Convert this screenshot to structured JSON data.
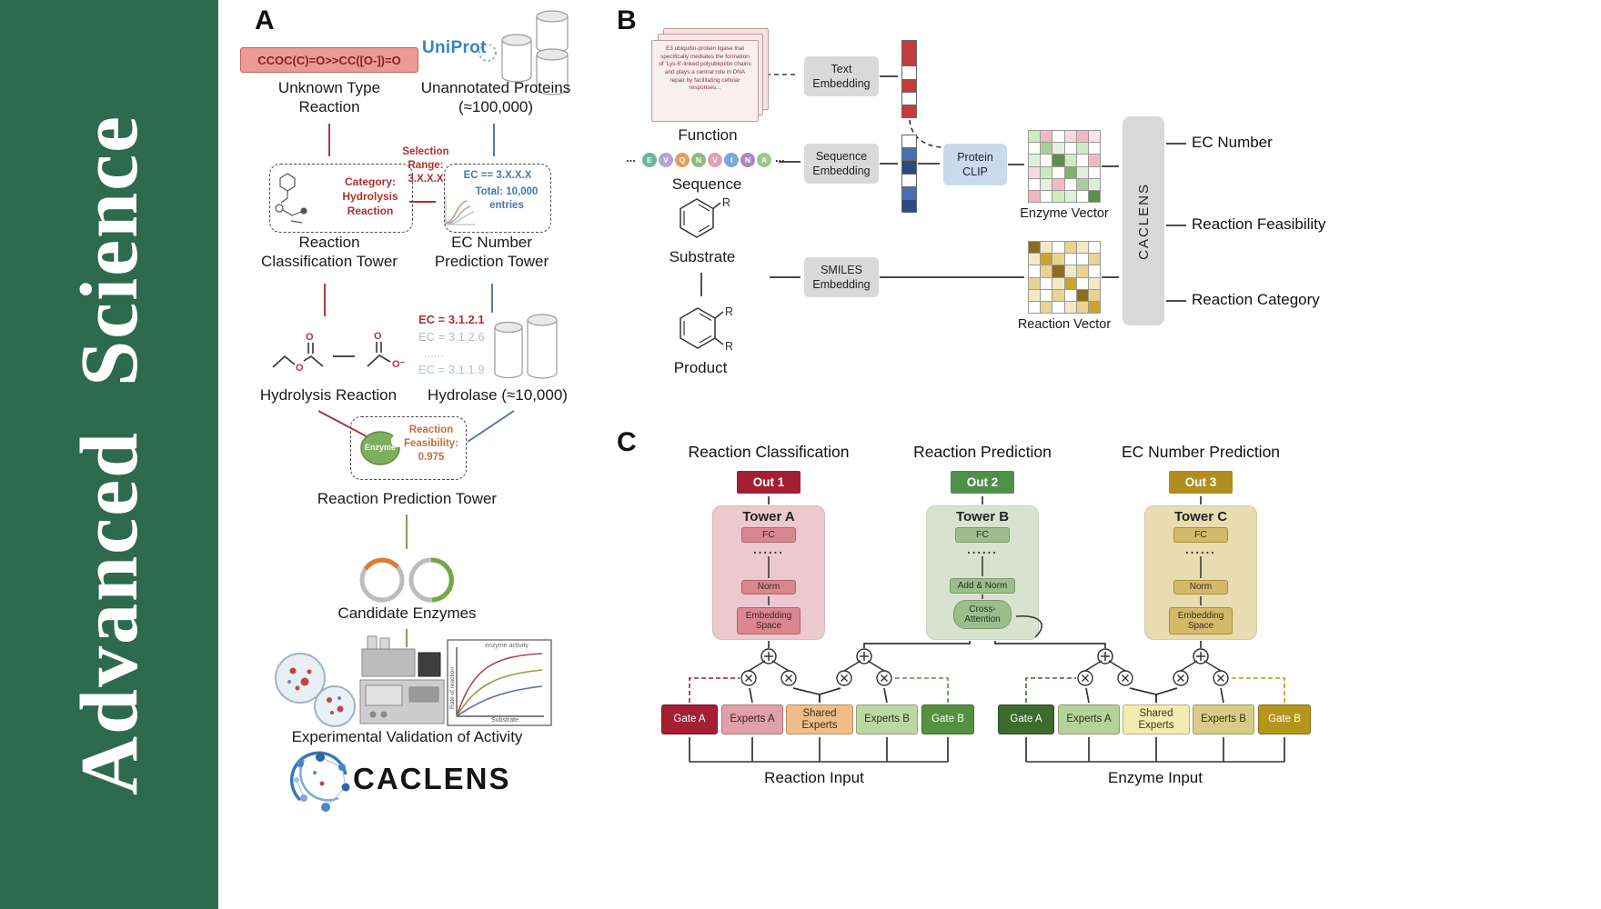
{
  "colors": {
    "banner_green": "#2d6a4e",
    "red_accent": "#b03030",
    "blue_accent": "#4878a8",
    "green_accent": "#7a9a50"
  },
  "journal": {
    "name": "Advanced  Science"
  },
  "panelA": {
    "label": "A",
    "smiles": "CCOC(C)=O>>CC([O-])=O",
    "unknown_reaction": "Unknown Type Reaction",
    "uniprot": "UniProt",
    "unannotated": "Unannotated Proteins (≈100,000)",
    "category": "Category: Hydrolysis Reaction",
    "selection": "Selection Range: 3.X.X.X",
    "ec_filter": "EC == 3.X.X.X",
    "ec_total": "Total: 10,000 entries",
    "classification_tower": "Reaction Classification Tower",
    "ec_tower": "EC Number Prediction Tower",
    "ec_list": [
      {
        "text": "EC = 3.1.2.1",
        "color": "#b03030"
      },
      {
        "text": "EC = 3.1.2.6",
        "color": "#bcbcbc"
      },
      {
        "text": "......",
        "color": "#bcbcbc"
      },
      {
        "text": "EC = 3.1.1.9",
        "color": "#a9c6de"
      }
    ],
    "hydrolysis": "Hydrolysis Reaction",
    "hydrolase": "Hydrolase (≈10,000)",
    "enzyme": "Enzyme",
    "feasibility_label": "Reaction Feasibility:",
    "feasibility_value": "0.975",
    "prediction_tower": "Reaction Prediction Tower",
    "candidates": "Candidate Enzymes",
    "validation": "Experimental Validation of Activity",
    "brand": "CACLENS",
    "atom_o": "O",
    "atom_o_minus": "O⁻",
    "graph_title": "enzyme activity",
    "graph_xlabel": "Substrate",
    "graph_ylabel": "Rate of reaction"
  },
  "panelB": {
    "label": "B",
    "function_text": "E3 ubiquitin-protein ligase that specifically mediates the formation of 'Lys-6'-linked polyubiquitin chains and plays a central role in DNA repair by facilitating cellular responses...",
    "function_label": "Function",
    "text_embedding": "Text Embedding",
    "ellipsis": "...",
    "sequence_label": "Sequence",
    "sequence_embedding": "Sequence Embedding",
    "protein_clip": "Protein CLIP",
    "enzyme_vector_label": "Enzyme Vector",
    "substrate_label": "Substrate",
    "product_label": "Product",
    "r_label": "R",
    "smiles_embedding": "SMILES Embedding",
    "reaction_vector_label": "Reaction Vector",
    "caclens": "CACLENS",
    "outputs": [
      "EC Number",
      "Reaction Feasibility",
      "Reaction Category"
    ],
    "sequence": [
      {
        "ch": "E",
        "color": "#69b89a"
      },
      {
        "ch": "V",
        "color": "#b3a6d6"
      },
      {
        "ch": "Q",
        "color": "#e39f5d"
      },
      {
        "ch": "N",
        "color": "#8cbd80"
      },
      {
        "ch": "V",
        "color": "#e2a0b5"
      },
      {
        "ch": "I",
        "color": "#7fa6d4"
      },
      {
        "ch": "N",
        "color": "#a689c0"
      },
      {
        "ch": "A",
        "color": "#9cc98b"
      }
    ],
    "text_vector": [
      "#c43b3b",
      "#c43b3b",
      "#ffffff",
      "#c43b3b",
      "#ffffff",
      "#c43b3b"
    ],
    "sequence_vector": [
      "#ffffff",
      "#4a6fb0",
      "#2c4a80",
      "#ffffff",
      "#4a6fb0",
      "#2c4a80"
    ],
    "enzyme_vector": [
      [
        "#cdeac0",
        "#f4b8c2",
        "#ffffff",
        "#f9d8de",
        "#f4b8c2",
        "#fbe4e8"
      ],
      [
        "#ffffff",
        "#a8cf9a",
        "#e4f0dd",
        "#ffffff",
        "#cdeac0",
        "#ffffff"
      ],
      [
        "#dff0d8",
        "#ffffff",
        "#5d8f4a",
        "#cdeac0",
        "#ffffff",
        "#f4b8c2"
      ],
      [
        "#f9d8de",
        "#cdeac0",
        "#ffffff",
        "#7fb36a",
        "#e4f0dd",
        "#ffffff"
      ],
      [
        "#ffffff",
        "#e4f0dd",
        "#f4b8c2",
        "#ffffff",
        "#a8cf9a",
        "#dff0d8"
      ],
      [
        "#f4b8c2",
        "#ffffff",
        "#cdeac0",
        "#dff0d8",
        "#ffffff",
        "#5d8f4a"
      ]
    ],
    "reaction_vector": [
      [
        "#8a6d1f",
        "#f3e9c8",
        "#ffffff",
        "#e7d491",
        "#f3e9c8",
        "#ffffff"
      ],
      [
        "#f3e9c8",
        "#c9a52d",
        "#e7d491",
        "#ffffff",
        "#ffffff",
        "#e7d491"
      ],
      [
        "#ffffff",
        "#e7d491",
        "#8a6d1f",
        "#f3e9c8",
        "#e7d491",
        "#ffffff"
      ],
      [
        "#e7d491",
        "#ffffff",
        "#f3e9c8",
        "#c9a52d",
        "#ffffff",
        "#f3e9c8"
      ],
      [
        "#f3e9c8",
        "#ffffff",
        "#e7d491",
        "#ffffff",
        "#8a6d1f",
        "#e7d491"
      ],
      [
        "#ffffff",
        "#e7d491",
        "#ffffff",
        "#f3e9c8",
        "#e7d491",
        "#c9a52d"
      ]
    ]
  },
  "panelC": {
    "label": "C",
    "titles": [
      "Reaction Classification",
      "Reaction Prediction",
      "EC Number Prediction"
    ],
    "outs": [
      {
        "text": "Out 1",
        "bg": "#a41e34"
      },
      {
        "text": "Out 2",
        "bg": "#4f8f4a"
      },
      {
        "text": "Out 3",
        "bg": "#b08d1e"
      }
    ],
    "towerA": {
      "title": "Tower A",
      "fc": "FC",
      "dots": "......",
      "norm": "Norm",
      "embed": "Embedding Space"
    },
    "towerB": {
      "title": "Tower B",
      "fc": "FC",
      "dots": "......",
      "norm": "Add & Norm",
      "attn": "Cross-Attention"
    },
    "towerC": {
      "title": "Tower C",
      "fc": "FC",
      "dots": "......",
      "norm": "Norm",
      "embed": "Embedding Space"
    },
    "moe_left": [
      {
        "text": "Gate A",
        "bg": "#a41e34",
        "fg": "#ffffff"
      },
      {
        "text": "Experts A",
        "bg": "#e2a0aa",
        "fg": "#3a2022"
      },
      {
        "text": "Shared Experts",
        "bg": "#f0bd88",
        "fg": "#3a2c1a"
      },
      {
        "text": "Experts B",
        "bg": "#bcd8a2",
        "fg": "#27351c"
      },
      {
        "text": "Gate B",
        "bg": "#55923f",
        "fg": "#ffffff"
      }
    ],
    "moe_right": [
      {
        "text": "Gate A",
        "bg": "#3c6b2d",
        "fg": "#ffffff"
      },
      {
        "text": "Experts A",
        "bg": "#b4d29a",
        "fg": "#27351c"
      },
      {
        "text": "Shared Experts",
        "bg": "#f3ecb0",
        "fg": "#3a341a"
      },
      {
        "text": "Experts B",
        "bg": "#d9cd85",
        "fg": "#36301a"
      },
      {
        "text": "Gate B",
        "bg": "#b6951d",
        "fg": "#ffffff"
      }
    ],
    "input_left": "Reaction Input",
    "input_right": "Enzyme Input"
  }
}
